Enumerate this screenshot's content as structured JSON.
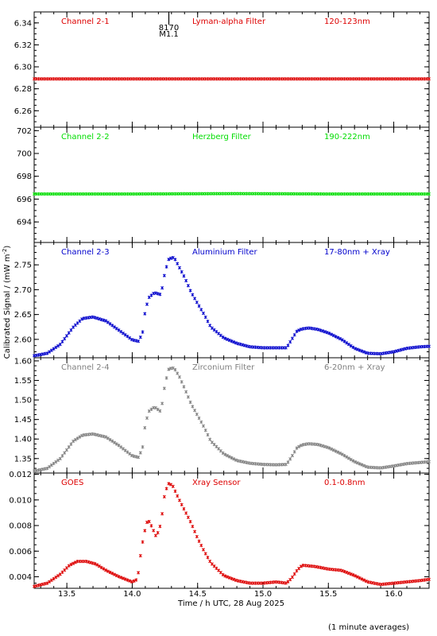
{
  "figure": {
    "xlabel": "Time / h UTC, 28 Aug 2025",
    "ylabel": "Calibrated Signal / (mW m",
    "ylabel_sup": "-2",
    "ylabel_close": ")",
    "footnote": "(1 minute averages)",
    "event_marker": {
      "time": 14.28,
      "label1": "8170",
      "label2": "M1.1"
    }
  },
  "chart_data": [
    {
      "type": "scatter",
      "channel": "Channel 2-1",
      "filter": "Lyman-alpha Filter",
      "band": "120-123nm",
      "color": "#dd0000",
      "xlim": [
        13.25,
        16.27
      ],
      "ylim": [
        6.245,
        6.35
      ],
      "yticks": [
        "6.26",
        "6.28",
        "6.30",
        "6.32",
        "6.34"
      ],
      "x": [
        13.25,
        14.0,
        14.8,
        15.5,
        16.27
      ],
      "y": [
        6.289,
        6.289,
        6.289,
        6.289,
        6.289
      ]
    },
    {
      "type": "scatter",
      "channel": "Channel 2-2",
      "filter": "Herzberg Filter",
      "band": "190-222nm",
      "color": "#00dd00",
      "xlim": [
        13.25,
        16.27
      ],
      "ylim": [
        692.2,
        702.3
      ],
      "yticks": [
        "694",
        "696",
        "698",
        "700",
        "702"
      ],
      "x": [
        13.25,
        14.0,
        14.8,
        15.5,
        16.27
      ],
      "y": [
        696.45,
        696.45,
        696.48,
        696.45,
        696.45
      ]
    },
    {
      "type": "scatter",
      "channel": "Channel 2-3",
      "filter": "Aluminium Filter",
      "band": "17-80nm + Xray",
      "color": "#0000cc",
      "xlim": [
        13.25,
        16.27
      ],
      "ylim": [
        2.563,
        2.795
      ],
      "yticks": [
        "2.60",
        "2.65",
        "2.70",
        "2.75"
      ],
      "x": [
        13.25,
        13.35,
        13.45,
        13.55,
        13.62,
        13.7,
        13.8,
        13.9,
        14.0,
        14.05,
        14.08,
        14.1,
        14.13,
        14.17,
        14.22,
        14.25,
        14.28,
        14.32,
        14.36,
        14.4,
        14.45,
        14.5,
        14.55,
        14.6,
        14.7,
        14.8,
        14.9,
        15.0,
        15.1,
        15.18,
        15.22,
        15.26,
        15.3,
        15.35,
        15.42,
        15.5,
        15.6,
        15.7,
        15.8,
        15.9,
        16.0,
        16.1,
        16.2,
        16.27
      ],
      "y": [
        2.567,
        2.572,
        2.59,
        2.625,
        2.642,
        2.645,
        2.637,
        2.618,
        2.599,
        2.596,
        2.615,
        2.66,
        2.685,
        2.694,
        2.69,
        2.735,
        2.762,
        2.765,
        2.745,
        2.725,
        2.695,
        2.672,
        2.65,
        2.625,
        2.603,
        2.592,
        2.585,
        2.583,
        2.583,
        2.583,
        2.6,
        2.617,
        2.621,
        2.623,
        2.62,
        2.613,
        2.6,
        2.582,
        2.572,
        2.571,
        2.575,
        2.582,
        2.585,
        2.586
      ]
    },
    {
      "type": "scatter",
      "channel": "Channel 2-4",
      "filter": "Zirconium Filter",
      "band": "6-20nm + Xray",
      "color": "#808080",
      "xlim": [
        13.25,
        16.27
      ],
      "ylim": [
        1.313,
        1.608
      ],
      "yticks": [
        "1.35",
        "1.40",
        "1.45",
        "1.50",
        "1.55",
        "1.60"
      ],
      "x": [
        13.25,
        13.35,
        13.45,
        13.55,
        13.62,
        13.7,
        13.8,
        13.9,
        14.0,
        14.05,
        14.08,
        14.1,
        14.13,
        14.17,
        14.22,
        14.25,
        14.28,
        14.32,
        14.36,
        14.4,
        14.45,
        14.5,
        14.55,
        14.6,
        14.7,
        14.8,
        14.9,
        15.0,
        15.1,
        15.18,
        15.22,
        15.26,
        15.3,
        15.35,
        15.42,
        15.5,
        15.6,
        15.7,
        15.8,
        15.9,
        16.0,
        16.1,
        16.2,
        16.27
      ],
      "y": [
        1.318,
        1.325,
        1.35,
        1.395,
        1.41,
        1.413,
        1.405,
        1.383,
        1.357,
        1.353,
        1.38,
        1.44,
        1.472,
        1.482,
        1.47,
        1.54,
        1.58,
        1.582,
        1.56,
        1.53,
        1.49,
        1.46,
        1.43,
        1.395,
        1.362,
        1.345,
        1.338,
        1.335,
        1.334,
        1.335,
        1.355,
        1.378,
        1.385,
        1.388,
        1.386,
        1.378,
        1.362,
        1.342,
        1.328,
        1.326,
        1.331,
        1.337,
        1.34,
        1.342
      ]
    },
    {
      "type": "scatter",
      "channel": "GOES",
      "filter": "Xray Sensor",
      "band": "0.1-0.8nm",
      "color": "#dd0000",
      "xlim": [
        13.25,
        16.27
      ],
      "ylim": [
        0.0031,
        0.0121
      ],
      "yticks": [
        "0.004",
        "0.006",
        "0.008",
        "0.010",
        "0.012"
      ],
      "x": [
        13.25,
        13.35,
        13.45,
        13.52,
        13.58,
        13.65,
        13.72,
        13.8,
        13.9,
        14.0,
        14.04,
        14.07,
        14.1,
        14.12,
        14.15,
        14.18,
        14.2,
        14.22,
        14.25,
        14.28,
        14.31,
        14.35,
        14.4,
        14.45,
        14.5,
        14.55,
        14.6,
        14.7,
        14.8,
        14.9,
        15.0,
        15.1,
        15.18,
        15.22,
        15.26,
        15.3,
        15.4,
        15.5,
        15.6,
        15.7,
        15.8,
        15.9,
        16.0,
        16.1,
        16.2,
        16.27
      ],
      "y": [
        0.00325,
        0.0035,
        0.0042,
        0.0049,
        0.0052,
        0.0052,
        0.005,
        0.0045,
        0.004,
        0.0036,
        0.0038,
        0.0062,
        0.0078,
        0.0085,
        0.0079,
        0.0072,
        0.0075,
        0.0082,
        0.0106,
        0.0113,
        0.0111,
        0.0102,
        0.0092,
        0.0082,
        0.007,
        0.006,
        0.0051,
        0.0041,
        0.0037,
        0.0035,
        0.0035,
        0.0036,
        0.0035,
        0.0039,
        0.0045,
        0.0049,
        0.0048,
        0.0046,
        0.0045,
        0.0041,
        0.0036,
        0.0034,
        0.0035,
        0.0036,
        0.0037,
        0.0038
      ]
    }
  ],
  "xaxis": {
    "ticks": [
      13.5,
      14.0,
      14.5,
      15.0,
      15.5,
      16.0
    ],
    "ticklabels": [
      "13.5",
      "14.0",
      "14.5",
      "15.0",
      "15.5",
      "16.0"
    ]
  }
}
